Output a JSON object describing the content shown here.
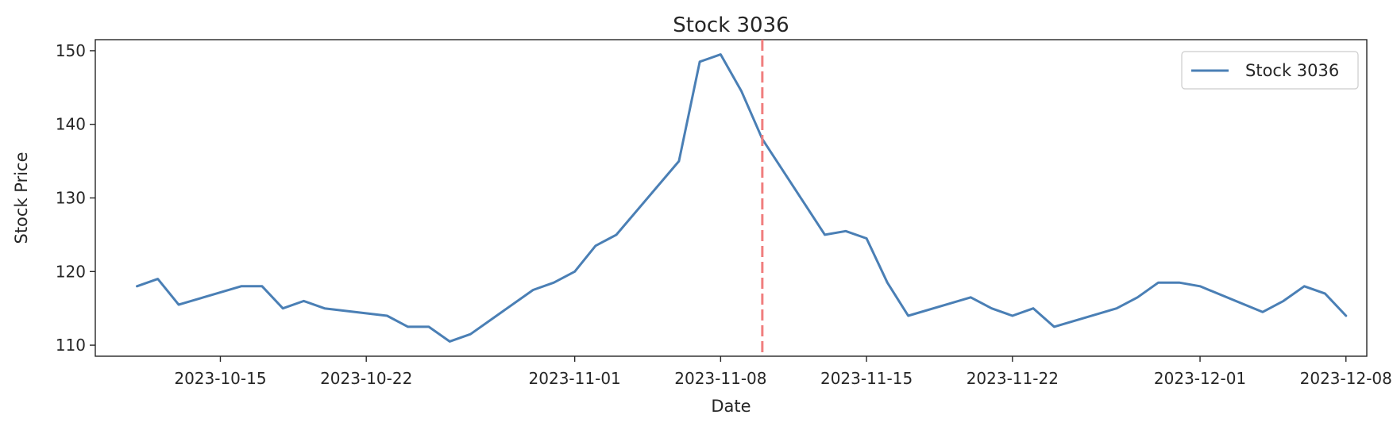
{
  "chart_data": {
    "type": "line",
    "title": "Stock 3036",
    "xlabel": "Date",
    "ylabel": "Stock Price",
    "xlim": [
      "2023-10-09",
      "2023-12-09"
    ],
    "ylim": [
      108.5,
      151.5
    ],
    "grid": false,
    "legend_position": "top-right",
    "xticks": [
      "2023-10-15",
      "2023-10-22",
      "2023-11-01",
      "2023-11-08",
      "2023-11-15",
      "2023-11-22",
      "2023-12-01",
      "2023-12-08"
    ],
    "yticks": [
      110,
      120,
      130,
      140,
      150
    ],
    "series": [
      {
        "name": "Stock 3036",
        "color": "#4a7fb5",
        "x": [
          "2023-10-11",
          "2023-10-12",
          "2023-10-13",
          "2023-10-16",
          "2023-10-17",
          "2023-10-18",
          "2023-10-19",
          "2023-10-20",
          "2023-10-23",
          "2023-10-24",
          "2023-10-25",
          "2023-10-26",
          "2023-10-27",
          "2023-10-30",
          "2023-10-31",
          "2023-11-01",
          "2023-11-02",
          "2023-11-03",
          "2023-11-06",
          "2023-11-07",
          "2023-11-08",
          "2023-11-09",
          "2023-11-10",
          "2023-11-13",
          "2023-11-14",
          "2023-11-15",
          "2023-11-16",
          "2023-11-17",
          "2023-11-20",
          "2023-11-21",
          "2023-11-22",
          "2023-11-23",
          "2023-11-24",
          "2023-11-27",
          "2023-11-28",
          "2023-11-29",
          "2023-11-30",
          "2023-12-01",
          "2023-12-04",
          "2023-12-05",
          "2023-12-06",
          "2023-12-07",
          "2023-12-08"
        ],
        "y": [
          118.0,
          119.0,
          115.5,
          118.0,
          118.0,
          115.0,
          116.0,
          115.0,
          114.0,
          112.5,
          112.5,
          110.5,
          111.5,
          117.5,
          118.5,
          120.0,
          123.5,
          125.0,
          135.0,
          148.5,
          149.5,
          144.5,
          138.0,
          125.0,
          125.5,
          124.5,
          118.5,
          114.0,
          116.5,
          115.0,
          114.0,
          115.0,
          112.5,
          115.0,
          116.5,
          118.5,
          118.5,
          118.0,
          114.5,
          116.0,
          118.0,
          117.0,
          114.0
        ]
      }
    ],
    "vline": {
      "x": "2023-11-10",
      "color": "#f07e7e",
      "style": "dashed"
    }
  }
}
